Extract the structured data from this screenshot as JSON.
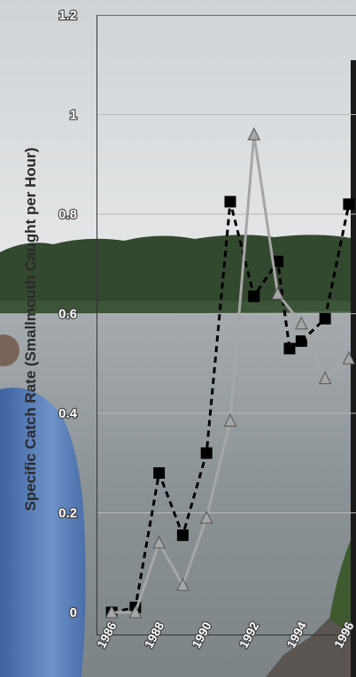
{
  "chart_data": {
    "type": "line",
    "title": "",
    "xlabel": "",
    "ylabel": "Specific Catch Rate (Smallmouth Caught per Hour)",
    "ylim": [
      0,
      1.2
    ],
    "xlim": [
      1985.4,
      1996.6
    ],
    "y_ticks": [
      "0",
      "0.2",
      "0.4",
      "0.6",
      "0.8",
      "1",
      "1.2"
    ],
    "x_ticks": [
      "1986",
      "1988",
      "1990",
      "1992",
      "1994",
      "1996"
    ],
    "grid": true,
    "series": [
      {
        "marker": "square",
        "line_style": "dashed",
        "color": "#000000",
        "x": [
          1986,
          1987,
          1988,
          1989,
          1990,
          1991,
          1992,
          1993,
          1993.5,
          1994,
          1995,
          1996
        ],
        "y": [
          0.0,
          0.01,
          0.28,
          0.155,
          0.32,
          0.825,
          0.635,
          0.705,
          0.53,
          0.545,
          0.59,
          0.82
        ]
      },
      {
        "marker": "triangle",
        "line_style": "solid",
        "color": "#a6a6a6",
        "x": [
          1986,
          1987,
          1988,
          1989,
          1990,
          1991,
          1992,
          1993,
          1994,
          1995,
          1996
        ],
        "y": [
          0.0,
          0.0,
          0.14,
          0.055,
          0.19,
          0.385,
          0.96,
          0.64,
          0.58,
          0.47,
          0.51
        ]
      }
    ]
  },
  "colors": {
    "sky": "#d9dde0",
    "treeline": "#344b30",
    "water": "#8e9599",
    "towel": "#5f84bd",
    "gridline": "#b8b8b8"
  }
}
